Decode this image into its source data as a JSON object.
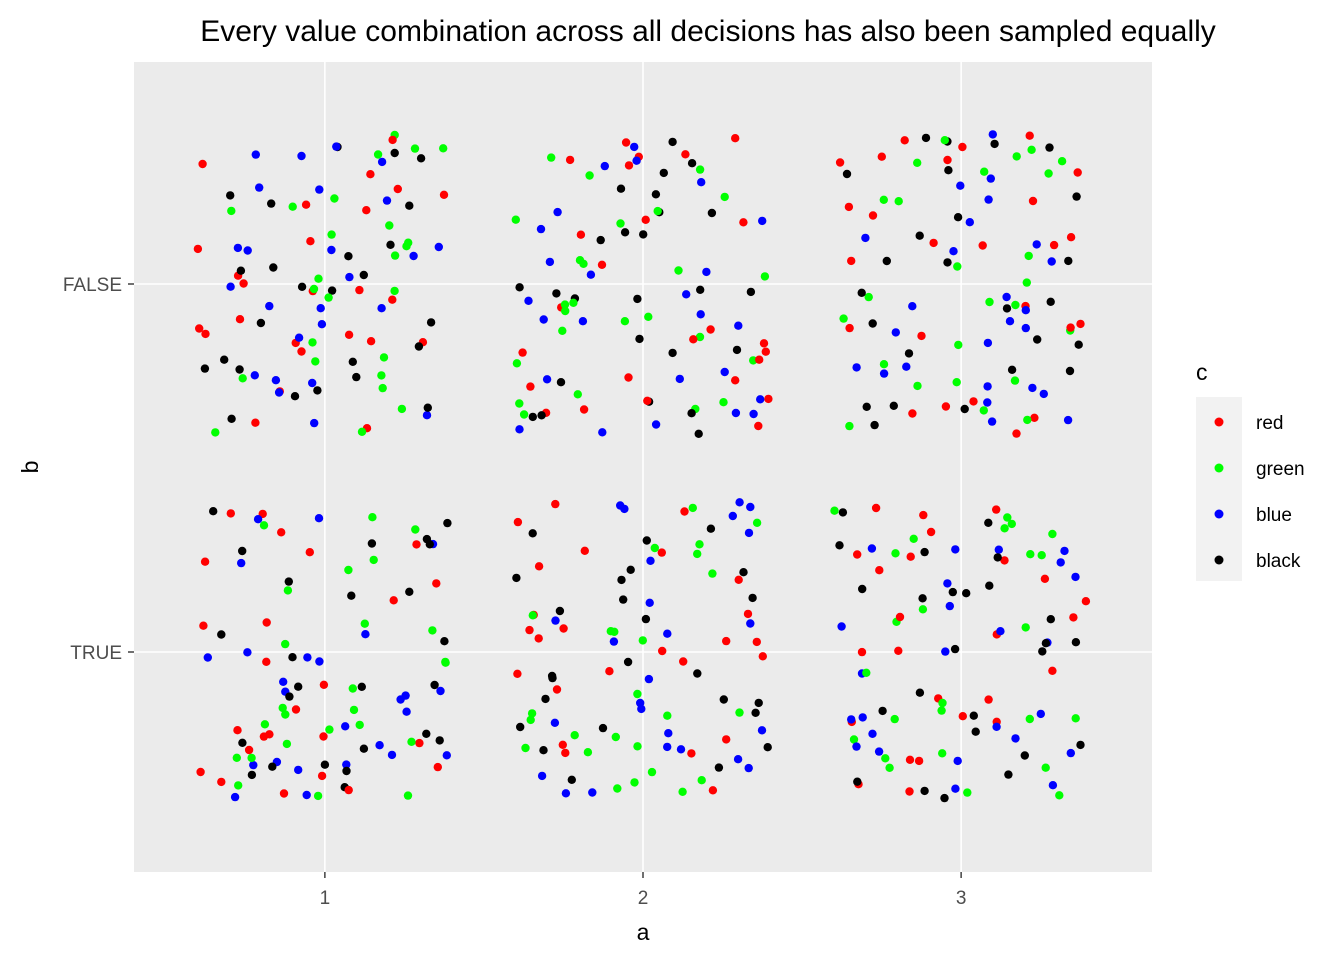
{
  "chart_data": {
    "type": "scatter",
    "title": "Every value combination across all decisions has also been sampled equally",
    "xlabel": "a",
    "ylabel": "b",
    "x_categories": [
      "1",
      "2",
      "3"
    ],
    "y_categories": [
      "FALSE",
      "TRUE"
    ],
    "xlim": [
      0.4,
      3.6
    ],
    "jitter": 0.4,
    "grid": true,
    "legend": {
      "title": "c",
      "position": "right",
      "entries": [
        {
          "label": "red",
          "color": "#ff0000"
        },
        {
          "label": "green",
          "color": "#00ff00"
        },
        {
          "label": "blue",
          "color": "#0000ff"
        },
        {
          "label": "black",
          "color": "#000000"
        }
      ]
    },
    "points_per_color_per_cell": 25,
    "note_series": "each (a, b) cell contains jittered points of every c value"
  }
}
